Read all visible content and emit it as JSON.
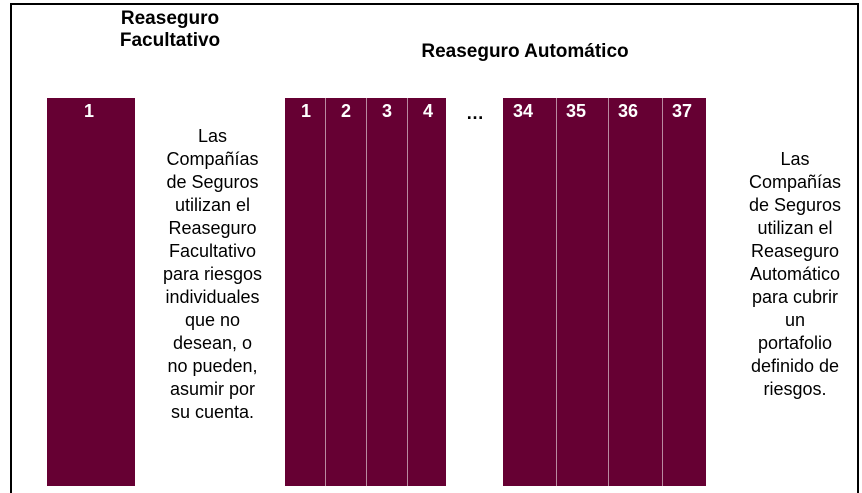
{
  "headings": {
    "facultative": [
      "Reaseguro",
      "Facultativo"
    ],
    "automatic": "Reaseguro Automático"
  },
  "facultative_column": "1",
  "automatic_columns_first": [
    "1",
    "2",
    "3",
    "4"
  ],
  "ellipsis": "…",
  "automatic_columns_last": [
    "34",
    "35",
    "36",
    "37"
  ],
  "facultative_text": [
    "Las",
    "Compañías",
    "de Seguros",
    "utilizan el",
    "Reaseguro",
    "Facultativo",
    "para riesgos",
    "individuales",
    "que no",
    "desean, o",
    "no pueden,",
    "asumir por",
    "su cuenta."
  ],
  "automatic_text": [
    "Las",
    "Compañías",
    "de Seguros",
    "utilizan el",
    "Reaseguro",
    "Automático",
    "para cubrir",
    "un",
    "portafolio",
    "definido de",
    "riesgos."
  ]
}
